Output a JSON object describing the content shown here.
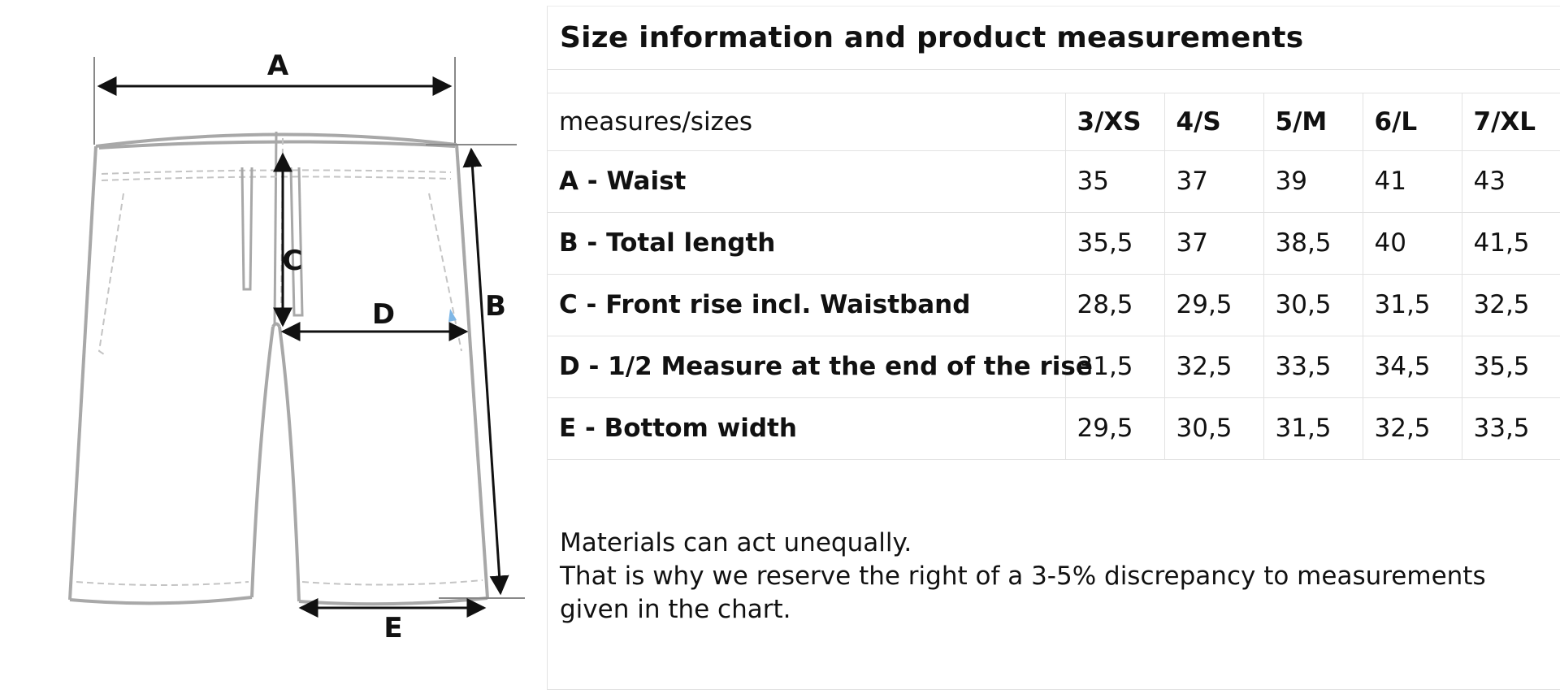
{
  "diagram": {
    "labels": {
      "a": "A",
      "b": "B",
      "c": "C",
      "d": "D",
      "e": "E"
    },
    "colors": {
      "outline": "#a8a8a8",
      "arrow": "#111111",
      "seam": "#c4c4c4"
    }
  },
  "panel": {
    "title": "Size information and product measurements",
    "table": {
      "corner": "measures/sizes",
      "sizes": [
        "3/XS",
        "4/S",
        "5/M",
        "6/L",
        "7/XL"
      ],
      "rows": [
        {
          "name": "A - Waist",
          "values": [
            "35",
            "37",
            "39",
            "41",
            "43"
          ]
        },
        {
          "name": "B - Total length",
          "values": [
            "35,5",
            "37",
            "38,5",
            "40",
            "41,5"
          ]
        },
        {
          "name": "C - Front rise incl. Waistband",
          "values": [
            "28,5",
            "29,5",
            "30,5",
            "31,5",
            "32,5"
          ]
        },
        {
          "name": "D - 1/2 Measure at the end of the rise",
          "values": [
            "31,5",
            "32,5",
            "33,5",
            "34,5",
            "35,5"
          ]
        },
        {
          "name": "E - Bottom width",
          "values": [
            "29,5",
            "30,5",
            "31,5",
            "32,5",
            "33,5"
          ]
        }
      ]
    },
    "notes": {
      "line1": "Materials can act unequally.",
      "line2": "That is why we reserve the right of a 3-5% discrepancy to measurements given in the chart."
    }
  }
}
